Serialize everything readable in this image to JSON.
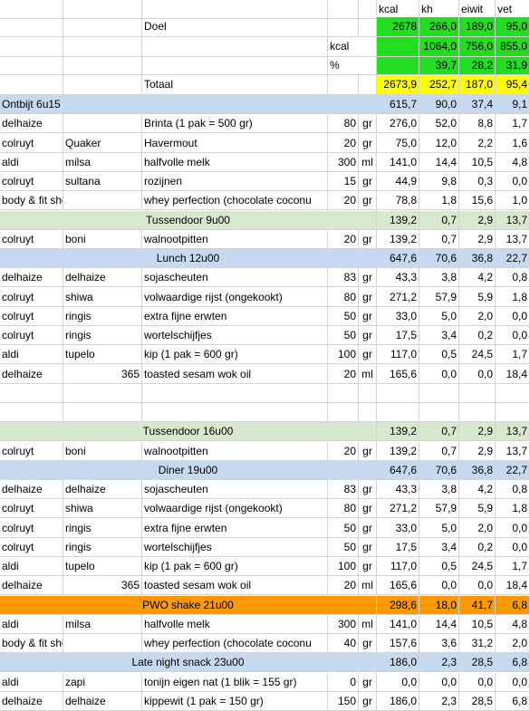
{
  "colors": {
    "green": "#22dd22",
    "yellow": "#ffff00",
    "blue": "#c6d9f1",
    "greenlight": "#d8e8cf",
    "orange": "#ff9900"
  },
  "header": {
    "kcal": "kcal",
    "kh": "kh",
    "eiwit": "eiwit",
    "vet": "vet"
  },
  "doel": {
    "label": "Doel",
    "kcal": "2678",
    "kh": "266,0",
    "eiwit": "189,0",
    "vet": "95,0"
  },
  "kcalrow": {
    "label": "kcal",
    "kh": "1064,0",
    "eiwit": "756,0",
    "vet": "855,0"
  },
  "pctrow": {
    "label": "%",
    "kh": "39,7",
    "eiwit": "28,2",
    "vet": "31,9"
  },
  "totaal": {
    "label": "Totaal",
    "kcal": "2673,9",
    "kh": "252,7",
    "eiwit": "187,0",
    "vet": "95,4"
  },
  "rows": [
    {
      "type": "meal",
      "color": "blue",
      "align": "left",
      "label": "Ontbijt 6u15",
      "kcal": "615,7",
      "kh": "90,0",
      "eiwit": "37,4",
      "vet": "9,1"
    },
    {
      "type": "item",
      "store": "delhaize",
      "brand": "",
      "product": "Brinta (1 pak = 500 gr)",
      "qty": "80",
      "unit": "gr",
      "kcal": "276,0",
      "kh": "52,0",
      "eiwit": "8,8",
      "vet": "1,7"
    },
    {
      "type": "item",
      "store": "colruyt",
      "brand": "Quaker",
      "product": "Havermout",
      "qty": "20",
      "unit": "gr",
      "kcal": "75,0",
      "kh": "12,0",
      "eiwit": "2,2",
      "vet": "1,6"
    },
    {
      "type": "item",
      "store": "aldi",
      "brand": "milsa",
      "product": "halfvolle melk",
      "qty": "300",
      "unit": "ml",
      "kcal": "141,0",
      "kh": "14,4",
      "eiwit": "10,5",
      "vet": "4,8"
    },
    {
      "type": "item",
      "store": "colruyt",
      "brand": "sultana",
      "product": "rozijnen",
      "qty": "15",
      "unit": "gr",
      "kcal": "44,9",
      "kh": "9,8",
      "eiwit": "0,3",
      "vet": "0,0"
    },
    {
      "type": "item",
      "store": "body & fit shop",
      "brand": "",
      "product": "whey perfection (chocolate coconu",
      "qty": "20",
      "unit": "gr",
      "kcal": "78,8",
      "kh": "1,8",
      "eiwit": "15,6",
      "vet": "1,0"
    },
    {
      "type": "meal",
      "color": "greenlight",
      "align": "center",
      "label": "Tussendoor 9u00",
      "kcal": "139,2",
      "kh": "0,7",
      "eiwit": "2,9",
      "vet": "13,7"
    },
    {
      "type": "item",
      "store": "colruyt",
      "brand": "boni",
      "product": "walnootpitten",
      "qty": "20",
      "unit": "gr",
      "kcal": "139,2",
      "kh": "0,7",
      "eiwit": "2,9",
      "vet": "13,7"
    },
    {
      "type": "meal",
      "color": "blue",
      "align": "center",
      "label": "Lunch 12u00",
      "kcal": "647,6",
      "kh": "70,6",
      "eiwit": "36,8",
      "vet": "22,7"
    },
    {
      "type": "item",
      "store": "delhaize",
      "brand": "delhaize",
      "product": "sojascheuten",
      "qty": "83",
      "unit": "gr",
      "kcal": "43,3",
      "kh": "3,8",
      "eiwit": "4,2",
      "vet": "0,8"
    },
    {
      "type": "item",
      "store": "colruyt",
      "brand": "shiwa",
      "product": "volwaardige rijst (ongekookt)",
      "qty": "80",
      "unit": "gr",
      "kcal": "271,2",
      "kh": "57,9",
      "eiwit": "5,9",
      "vet": "1,8"
    },
    {
      "type": "item",
      "store": "colruyt",
      "brand": "ringis",
      "product": "extra fijne erwten",
      "qty": "50",
      "unit": "gr",
      "kcal": "33,0",
      "kh": "5,0",
      "eiwit": "2,0",
      "vet": "0,0"
    },
    {
      "type": "item",
      "store": "colruyt",
      "brand": "ringis",
      "product": "wortelschijfjes",
      "qty": "50",
      "unit": "gr",
      "kcal": "17,5",
      "kh": "3,4",
      "eiwit": "0,2",
      "vet": "0,0"
    },
    {
      "type": "item",
      "store": "aldi",
      "brand": "tupelo",
      "product": "kip (1 pak = 600 gr)",
      "qty": "100",
      "unit": "gr",
      "kcal": "117,0",
      "kh": "0,5",
      "eiwit": "24,5",
      "vet": "1,7"
    },
    {
      "type": "item",
      "store": "delhaize",
      "brand": "365",
      "brandRight": true,
      "product": "toasted sesam wok oil",
      "qty": "20",
      "unit": "ml",
      "kcal": "165,6",
      "kh": "0,0",
      "eiwit": "0,0",
      "vet": "18,4"
    },
    {
      "type": "blank"
    },
    {
      "type": "blank"
    },
    {
      "type": "meal",
      "color": "greenlight",
      "align": "center",
      "label": "Tussendoor 16u00",
      "kcal": "139,2",
      "kh": "0,7",
      "eiwit": "2,9",
      "vet": "13,7"
    },
    {
      "type": "item",
      "store": "colruyt",
      "brand": "boni",
      "product": "walnootpitten",
      "qty": "20",
      "unit": "gr",
      "kcal": "139,2",
      "kh": "0,7",
      "eiwit": "2,9",
      "vet": "13,7"
    },
    {
      "type": "meal",
      "color": "blue",
      "align": "center",
      "label": "Diner 19u00",
      "kcal": "647,6",
      "kh": "70,6",
      "eiwit": "36,8",
      "vet": "22,7"
    },
    {
      "type": "item",
      "store": "delhaize",
      "brand": "delhaize",
      "product": "sojascheuten",
      "qty": "83",
      "unit": "gr",
      "kcal": "43,3",
      "kh": "3,8",
      "eiwit": "4,2",
      "vet": "0,8"
    },
    {
      "type": "item",
      "store": "colruyt",
      "brand": "shiwa",
      "product": "volwaardige rijst (ongekookt)",
      "qty": "80",
      "unit": "gr",
      "kcal": "271,2",
      "kh": "57,9",
      "eiwit": "5,9",
      "vet": "1,8"
    },
    {
      "type": "item",
      "store": "colruyt",
      "brand": "ringis",
      "product": "extra fijne erwten",
      "qty": "50",
      "unit": "gr",
      "kcal": "33,0",
      "kh": "5,0",
      "eiwit": "2,0",
      "vet": "0,0"
    },
    {
      "type": "item",
      "store": "colruyt",
      "brand": "ringis",
      "product": "wortelschijfjes",
      "qty": "50",
      "unit": "gr",
      "kcal": "17,5",
      "kh": "3,4",
      "eiwit": "0,2",
      "vet": "0,0"
    },
    {
      "type": "item",
      "store": "aldi",
      "brand": "tupelo",
      "product": "kip (1 pak = 600 gr)",
      "qty": "100",
      "unit": "gr",
      "kcal": "117,0",
      "kh": "0,5",
      "eiwit": "24,5",
      "vet": "1,7"
    },
    {
      "type": "item",
      "store": "delhaize",
      "brand": "365",
      "brandRight": true,
      "product": "toasted sesam wok oil",
      "qty": "20",
      "unit": "ml",
      "kcal": "165,6",
      "kh": "0,0",
      "eiwit": "0,0",
      "vet": "18,4"
    },
    {
      "type": "meal",
      "color": "orange",
      "align": "center",
      "label": "PWO shake 21u00",
      "kcal": "298,6",
      "kh": "18,0",
      "eiwit": "41,7",
      "vet": "6,8"
    },
    {
      "type": "item",
      "store": "aldi",
      "brand": "milsa",
      "product": "halfvolle melk",
      "qty": "300",
      "unit": "ml",
      "kcal": "141,0",
      "kh": "14,4",
      "eiwit": "10,5",
      "vet": "4,8"
    },
    {
      "type": "item",
      "store": "body & fit shop",
      "brand": "",
      "product": "whey perfection (chocolate coconu",
      "qty": "40",
      "unit": "gr",
      "kcal": "157,6",
      "kh": "3,6",
      "eiwit": "31,2",
      "vet": "2,0"
    },
    {
      "type": "meal",
      "color": "blue",
      "align": "center",
      "label": "Late night snack 23u00",
      "kcal": "186,0",
      "kh": "2,3",
      "eiwit": "28,5",
      "vet": "6,8"
    },
    {
      "type": "item",
      "store": "aldi",
      "brand": "zapi",
      "product": "tonijn eigen nat (1 blik = 155 gr)",
      "qty": "0",
      "unit": "gr",
      "kcal": "0,0",
      "kh": "0,0",
      "eiwit": "0,0",
      "vet": "0,0"
    },
    {
      "type": "item",
      "store": "delhaize",
      "brand": "delhaize",
      "product": "kippewit (1 pak = 150 gr)",
      "qty": "150",
      "unit": "gr",
      "kcal": "186,0",
      "kh": "2,3",
      "eiwit": "28,5",
      "vet": "6,8"
    }
  ]
}
